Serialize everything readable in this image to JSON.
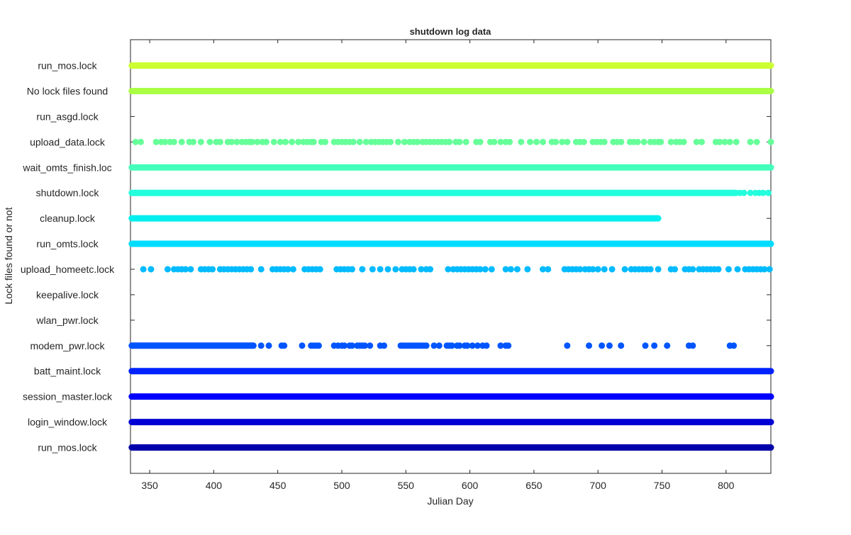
{
  "chart_data": {
    "type": "scatter",
    "title": "shutdown log data",
    "xlabel": "Julian Day",
    "ylabel": "Lock files found or not",
    "xlim": [
      335,
      835
    ],
    "xticks": [
      350,
      400,
      450,
      500,
      550,
      600,
      650,
      700,
      750,
      800
    ],
    "grid": false,
    "legend": "none",
    "categories": [
      "run_mos.lock",
      "login_window.lock",
      "session_master.lock",
      "batt_maint.lock",
      "modem_pwr.lock",
      "wlan_pwr.lock",
      "keepalive.lock",
      "upload_homeetc.lock",
      "run_omts.lock",
      "cleanup.lock",
      "shutdown.lock",
      "wait_omts_finish.loc",
      "upload_data.lock",
      "run_asgd.lock",
      "No lock files found",
      "run_mos.lock"
    ],
    "series": [
      {
        "color": "#0000aa",
        "ranges": [
          [
            336,
            835
          ]
        ],
        "points": []
      },
      {
        "color": "#0000d4",
        "ranges": [
          [
            336,
            835
          ]
        ],
        "points": []
      },
      {
        "color": "#0000ff",
        "ranges": [
          [
            336,
            835
          ]
        ],
        "points": []
      },
      {
        "color": "#0022ff",
        "ranges": [
          [
            336,
            835
          ]
        ],
        "points": []
      },
      {
        "color": "#0055ff",
        "ranges": [
          [
            336,
            431
          ]
        ],
        "points": [
          437,
          443,
          453,
          455,
          469,
          476,
          478,
          480,
          482,
          494,
          497,
          500,
          502,
          506,
          508,
          512,
          514,
          516,
          518,
          522,
          530,
          533,
          546,
          548,
          550,
          552,
          554,
          556,
          558,
          560,
          562,
          564,
          566,
          572,
          576,
          582,
          584,
          586,
          590,
          592,
          596,
          598,
          602,
          606,
          610,
          613,
          624,
          628,
          630,
          676,
          693,
          703,
          709,
          718,
          737,
          744,
          754,
          771,
          774,
          803,
          806
        ]
      },
      {
        "color": "#0077ff",
        "ranges": [],
        "points": []
      },
      {
        "color": "#0099ff",
        "ranges": [],
        "points": []
      },
      {
        "color": "#00bbff",
        "ranges": [],
        "points": [
          345,
          351,
          364,
          369,
          372,
          375,
          378,
          382,
          390,
          393,
          396,
          399,
          405,
          408,
          411,
          414,
          417,
          420,
          423,
          426,
          429,
          437,
          446,
          449,
          452,
          455,
          458,
          462,
          471,
          474,
          477,
          480,
          483,
          496,
          499,
          502,
          505,
          508,
          516,
          524,
          530,
          536,
          542,
          547,
          550,
          553,
          556,
          562,
          566,
          569,
          583,
          587,
          590,
          593,
          596,
          599,
          602,
          605,
          608,
          612,
          617,
          628,
          632,
          637,
          645,
          657,
          661,
          674,
          677,
          680,
          683,
          686,
          690,
          693,
          696,
          700,
          705,
          711,
          721,
          726,
          729,
          732,
          735,
          738,
          741,
          747,
          757,
          760,
          768,
          771,
          774,
          779,
          782,
          785,
          788,
          791,
          794,
          802,
          809,
          815,
          818,
          821,
          824,
          827,
          830,
          834
        ]
      },
      {
        "color": "#00ddff",
        "ranges": [
          [
            336,
            835
          ]
        ],
        "points": []
      },
      {
        "color": "#00eeee",
        "ranges": [
          [
            336,
            747
          ]
        ],
        "points": []
      },
      {
        "color": "#22ffdd",
        "ranges": [
          [
            336,
            808
          ]
        ],
        "points": [
          811,
          814,
          819,
          823,
          826,
          829,
          833
        ]
      },
      {
        "color": "#44ffbb",
        "ranges": [
          [
            336,
            835
          ]
        ],
        "points": []
      },
      {
        "color": "#66ff99",
        "ranges": [],
        "points": [
          339,
          343,
          355,
          359,
          362,
          366,
          369,
          375,
          381,
          384,
          390,
          397,
          402,
          405,
          411,
          414,
          418,
          422,
          425,
          428,
          430,
          434,
          438,
          441,
          447,
          452,
          456,
          461,
          466,
          470,
          473,
          476,
          478,
          484,
          487,
          494,
          497,
          500,
          503,
          506,
          509,
          514,
          519,
          523,
          526,
          529,
          532,
          535,
          538,
          544,
          549,
          553,
          556,
          559,
          563,
          566,
          569,
          572,
          575,
          578,
          581,
          584,
          589,
          592,
          597,
          605,
          608,
          616,
          619,
          624,
          628,
          631,
          640,
          647,
          652,
          657,
          664,
          667,
          672,
          676,
          683,
          686,
          689,
          696,
          699,
          702,
          705,
          712,
          715,
          718,
          725,
          728,
          731,
          736,
          741,
          744,
          747,
          749,
          757,
          761,
          764,
          767,
          777,
          781,
          792,
          795,
          799,
          803,
          808,
          819,
          824,
          835
        ]
      },
      {
        "color": "#99ff66",
        "ranges": [],
        "points": []
      },
      {
        "color": "#aaff44",
        "ranges": [
          [
            336,
            835
          ]
        ],
        "points": []
      },
      {
        "color": "#ccff33",
        "ranges": [
          [
            336,
            835
          ]
        ],
        "points": []
      }
    ]
  }
}
